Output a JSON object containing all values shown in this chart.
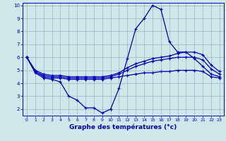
{
  "xlabel": "Graphe des températures (°c)",
  "background_color": "#cce8e8",
  "grid_color": "#aabbcc",
  "line_color": "#0000bb",
  "ylim": [
    1.5,
    10.2
  ],
  "xlim": [
    -0.5,
    23.5
  ],
  "yticks": [
    2,
    3,
    4,
    5,
    6,
    7,
    8,
    9,
    10
  ],
  "xticks": [
    0,
    1,
    2,
    3,
    4,
    5,
    6,
    7,
    8,
    9,
    10,
    11,
    12,
    13,
    14,
    15,
    16,
    17,
    18,
    19,
    20,
    21,
    22,
    23
  ],
  "hours": [
    0,
    1,
    2,
    3,
    4,
    5,
    6,
    7,
    8,
    9,
    10,
    11,
    12,
    13,
    14,
    15,
    16,
    17,
    18,
    19,
    20,
    21,
    22,
    23
  ],
  "temp_main": [
    6.0,
    4.8,
    4.4,
    4.3,
    4.1,
    3.0,
    2.7,
    2.1,
    2.1,
    1.7,
    2.0,
    3.6,
    5.9,
    8.2,
    9.0,
    10.0,
    9.7,
    7.2,
    6.4,
    6.4,
    5.9,
    5.3,
    4.7,
    4.5
  ],
  "temp_line2": [
    6.0,
    4.9,
    4.5,
    4.4,
    4.4,
    4.3,
    4.3,
    4.3,
    4.3,
    4.3,
    4.4,
    4.5,
    4.6,
    4.7,
    4.8,
    4.8,
    4.9,
    4.9,
    5.0,
    5.0,
    5.0,
    4.9,
    4.5,
    4.4
  ],
  "temp_line3": [
    6.0,
    4.9,
    4.6,
    4.5,
    4.5,
    4.4,
    4.4,
    4.4,
    4.4,
    4.4,
    4.5,
    4.7,
    5.0,
    5.3,
    5.5,
    5.7,
    5.8,
    5.9,
    6.0,
    6.0,
    6.0,
    5.8,
    5.1,
    4.7
  ],
  "temp_line4": [
    6.0,
    5.0,
    4.7,
    4.6,
    4.6,
    4.5,
    4.5,
    4.5,
    4.5,
    4.5,
    4.6,
    4.8,
    5.2,
    5.5,
    5.7,
    5.9,
    6.0,
    6.1,
    6.3,
    6.4,
    6.4,
    6.2,
    5.4,
    4.9
  ]
}
